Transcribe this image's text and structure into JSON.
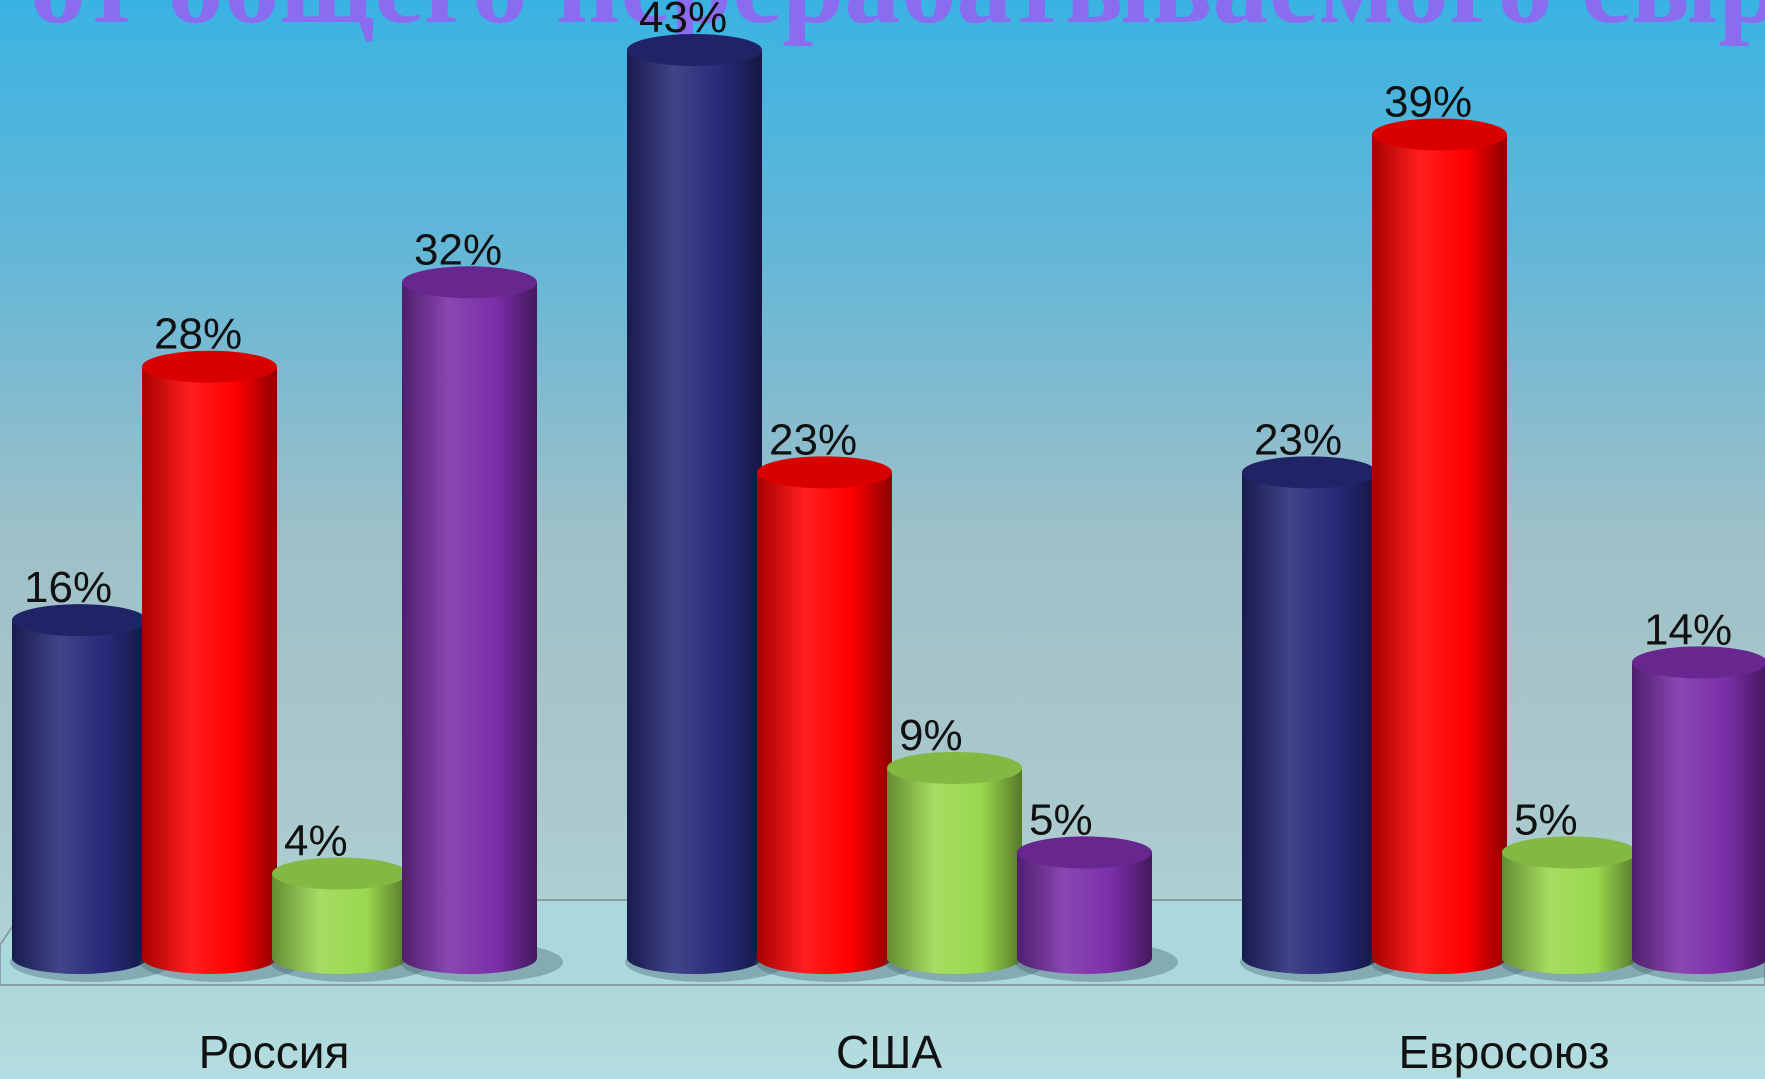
{
  "slide": {
    "title": "от общего перерабатываемого сырья"
  },
  "chart_data": {
    "type": "bar",
    "style": "3d-cylinder",
    "categories": [
      "Россия",
      "США",
      "Евросоюз"
    ],
    "series": [
      {
        "color": "#262a78",
        "values": [
          16,
          43,
          23
        ]
      },
      {
        "color": "#ff0000",
        "values": [
          28,
          23,
          39
        ]
      },
      {
        "color": "#9ad84e",
        "values": [
          4,
          9,
          5
        ]
      },
      {
        "color": "#7a2ea8",
        "values": [
          32,
          5,
          14
        ]
      }
    ],
    "data_labels": [
      [
        "16%",
        "28%",
        "4%",
        "32%"
      ],
      [
        "43%",
        "23%",
        "9%",
        "5%"
      ],
      [
        "23%",
        "39%",
        "5%",
        "14%"
      ]
    ],
    "ylim": [
      0,
      43
    ],
    "grid": false,
    "legend": "none"
  }
}
